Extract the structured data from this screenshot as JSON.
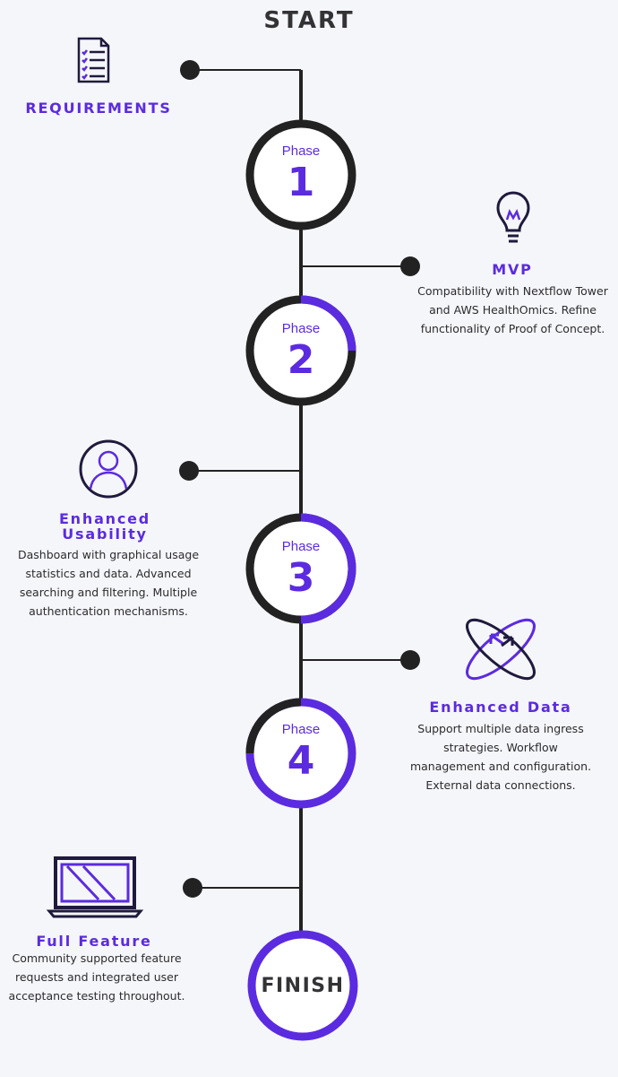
{
  "diagram": {
    "start_label": "START",
    "finish_label": "FINISH",
    "phases": [
      {
        "label": "Phase",
        "number": "1"
      },
      {
        "label": "Phase",
        "number": "2"
      },
      {
        "label": "Phase",
        "number": "3"
      },
      {
        "label": "Phase",
        "number": "4"
      }
    ],
    "milestones": [
      {
        "title": "REQUIREMENTS",
        "description": "",
        "icon": "checklist-icon"
      },
      {
        "title": "MVP",
        "description": "Compatibility with Nextflow Tower and AWS HealthOmics. Refine functionality of Proof of Concept.",
        "icon": "lightbulb-icon"
      },
      {
        "title": "Enhanced Usability",
        "description": "Dashboard with graphical usage statistics and data. Advanced searching and filtering. Multiple authentication mechanisms.",
        "icon": "user-icon"
      },
      {
        "title": "Enhanced Data",
        "description": "Support multiple data ingress strategies. Workflow management and configuration. External data connections.",
        "icon": "data-arrows-icon"
      },
      {
        "title": "Full Feature",
        "description": "Community supported feature requests and integrated user acceptance testing throughout.",
        "icon": "laptop-icon"
      }
    ],
    "colors": {
      "accent": "#5b2be0",
      "line": "#222222",
      "text": "#333336",
      "background": "#f5f6fa"
    }
  }
}
